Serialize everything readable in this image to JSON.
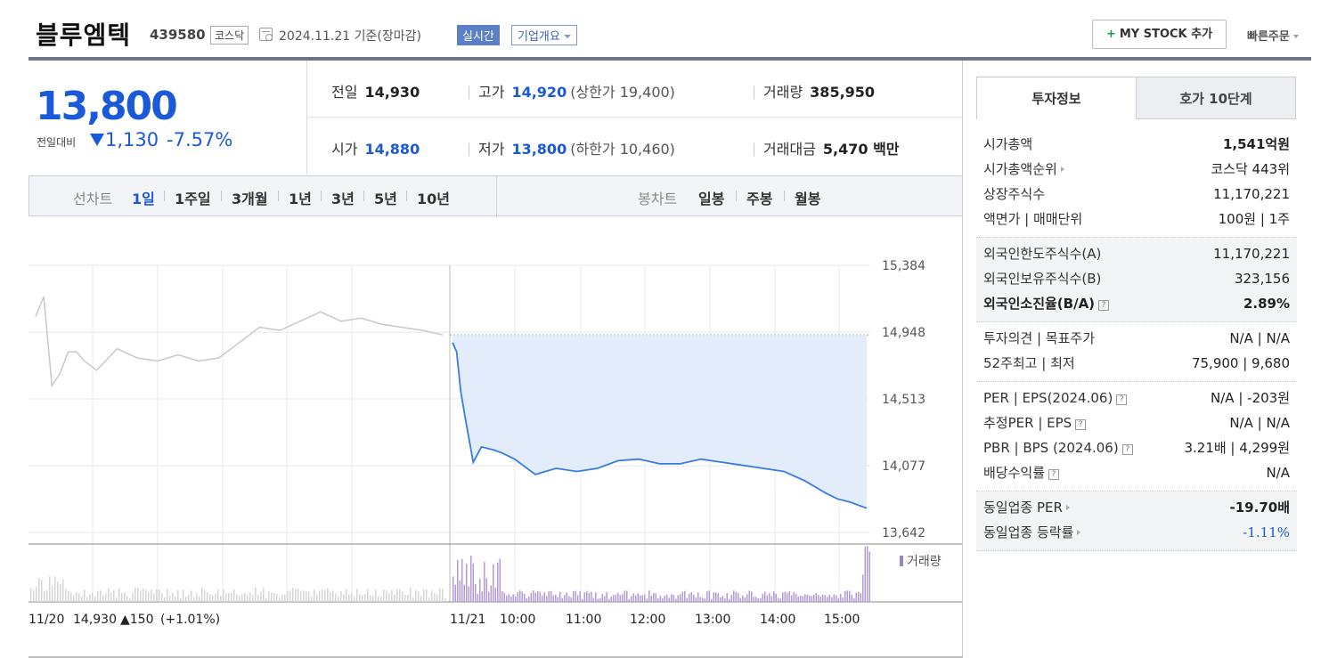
{
  "header": {
    "name": "블루엠텍",
    "code": "439580",
    "market": "코스닥",
    "date": "2024.11.21 기준(장마감)",
    "realtime": "실시간",
    "overview": "기업개요",
    "mystock": "MY STOCK 추가",
    "quick": "빠른주문"
  },
  "price": {
    "now": "13,800",
    "compare_label": "전일대비",
    "change": "1,130",
    "change_pct": "-7.57%",
    "color_down": "#1a5ad8"
  },
  "stats": {
    "prev": {
      "label": "전일",
      "value": "14,930"
    },
    "high": {
      "label": "고가",
      "value": "14,920",
      "sub": "(상한가 19,400)"
    },
    "volume": {
      "label": "거래량",
      "value": "385,950"
    },
    "open": {
      "label": "시가",
      "value": "14,880"
    },
    "low": {
      "label": "저가",
      "value": "13,800",
      "sub": "(하한가 10,460)"
    },
    "amount": {
      "label": "거래대금",
      "value": "5,470 백만"
    }
  },
  "chart_tabs": {
    "line_label": "선차트",
    "line": [
      "1일",
      "1주일",
      "3개월",
      "1년",
      "3년",
      "5년",
      "10년"
    ],
    "candle_label": "봉차트",
    "candle": [
      "일봉",
      "주봉",
      "월봉"
    ],
    "active": "1일"
  },
  "chart_data": {
    "type": "line",
    "y_ticks": [
      "15,384",
      "14,948",
      "14,513",
      "14,077",
      "13,642"
    ],
    "ylim": [
      13642,
      15384
    ],
    "prev_close": 14930,
    "x_ticks": [
      "11/20",
      "11/21",
      "10:00",
      "11:00",
      "12:00",
      "13:00",
      "14:00",
      "15:00"
    ],
    "volume_label": "거래량",
    "prev_day_summary": {
      "date": "11/20",
      "close": "14,930",
      "change": "▲150",
      "pct": "(+1.01%)"
    },
    "series": [
      {
        "name": "11/20",
        "color": "#c8c8c8",
        "x": [
          0,
          0.02,
          0.04,
          0.06,
          0.08,
          0.1,
          0.12,
          0.15,
          0.2,
          0.25,
          0.3,
          0.35,
          0.4,
          0.45,
          0.5,
          0.55,
          0.6,
          0.65,
          0.7,
          0.75,
          0.8,
          0.85,
          0.9,
          0.95,
          1.0
        ],
        "y": [
          15050,
          15180,
          14600,
          14680,
          14820,
          14820,
          14760,
          14700,
          14840,
          14780,
          14760,
          14800,
          14760,
          14780,
          14880,
          14980,
          14960,
          15020,
          15080,
          15020,
          15040,
          15000,
          14980,
          14960,
          14930
        ]
      },
      {
        "name": "11/21",
        "color": "#3a7be0",
        "x": [
          0,
          0.01,
          0.02,
          0.03,
          0.05,
          0.07,
          0.1,
          0.12,
          0.15,
          0.2,
          0.25,
          0.3,
          0.35,
          0.4,
          0.45,
          0.5,
          0.55,
          0.6,
          0.65,
          0.7,
          0.75,
          0.8,
          0.85,
          0.9,
          0.93,
          0.96,
          1.0
        ],
        "y": [
          14880,
          14820,
          14560,
          14400,
          14100,
          14200,
          14180,
          14160,
          14120,
          14020,
          14060,
          14040,
          14060,
          14110,
          14120,
          14090,
          14090,
          14120,
          14100,
          14080,
          14060,
          14040,
          13980,
          13900,
          13860,
          13840,
          13800
        ]
      }
    ]
  },
  "right_panel": {
    "tabs": [
      "투자정보",
      "호가 10단계"
    ],
    "sections": [
      {
        "gray": false,
        "rows": [
          {
            "k": "시가총액",
            "v": "1,541억원",
            "kb": false,
            "vb": true,
            "arrow": false,
            "q": false
          },
          {
            "k": "시가총액순위",
            "v": "코스닥 443위",
            "kb": false,
            "vb": false,
            "arrow": true,
            "q": false
          },
          {
            "k": "상장주식수",
            "v": "11,170,221",
            "kb": false,
            "vb": false,
            "arrow": false,
            "q": false
          },
          {
            "k": "액면가 | 매매단위",
            "v": "100원 | 1주",
            "kb": false,
            "vb": false,
            "arrow": false,
            "q": false
          }
        ]
      },
      {
        "gray": true,
        "rows": [
          {
            "k": "외국인한도주식수(A)",
            "v": "11,170,221",
            "kb": false,
            "vb": false,
            "arrow": false,
            "q": false
          },
          {
            "k": "외국인보유주식수(B)",
            "v": "323,156",
            "kb": false,
            "vb": false,
            "arrow": false,
            "q": false
          },
          {
            "k": "외국인소진율(B/A)",
            "v": "2.89%",
            "kb": true,
            "vb": true,
            "arrow": false,
            "q": true
          }
        ]
      },
      {
        "gray": false,
        "rows": [
          {
            "k": "투자의견 | 목표주가",
            "v": "N/A | N/A",
            "kb": false,
            "vb": false,
            "arrow": false,
            "q": false
          },
          {
            "k": "52주최고 | 최저",
            "v": "75,900 | 9,680",
            "kb": false,
            "vb": false,
            "arrow": false,
            "q": false
          }
        ]
      },
      {
        "gray": false,
        "rows": [
          {
            "k": "PER | EPS(2024.06)",
            "v": "N/A | -203원",
            "kb": false,
            "vb": false,
            "arrow": false,
            "q": true
          },
          {
            "k": "추정PER | EPS",
            "v": "N/A | N/A",
            "kb": false,
            "vb": false,
            "arrow": false,
            "q": true
          },
          {
            "k": "PBR | BPS (2024.06)",
            "v": "3.21배 | 4,299원",
            "kb": false,
            "vb": false,
            "arrow": false,
            "q": true
          },
          {
            "k": "배당수익률",
            "v": "N/A",
            "kb": false,
            "vb": false,
            "arrow": false,
            "q": true
          }
        ]
      },
      {
        "gray": true,
        "rows": [
          {
            "k": "동일업종 PER",
            "v": "-19.70배",
            "kb": false,
            "vb": true,
            "arrow": true,
            "q": false
          },
          {
            "k": "동일업종 등락률",
            "v": "-1.11%",
            "kb": false,
            "vb": false,
            "arrow": true,
            "q": false,
            "blue": true
          }
        ]
      }
    ]
  }
}
